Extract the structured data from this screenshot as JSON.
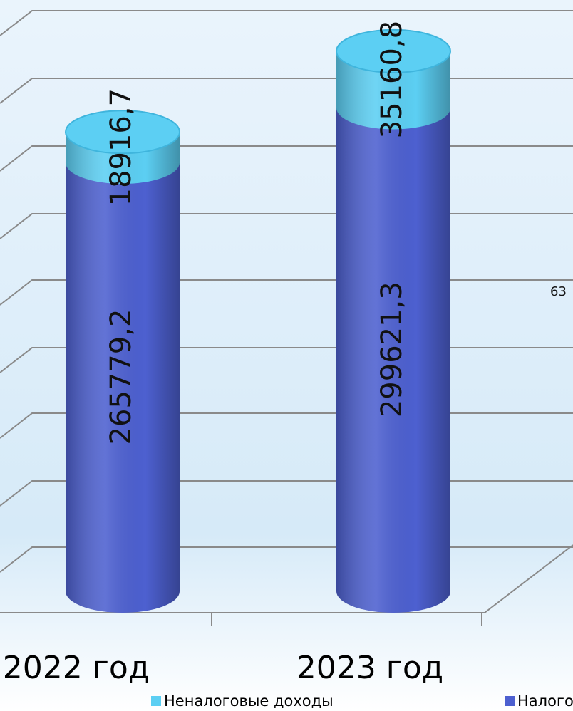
{
  "chart_data": {
    "type": "bar",
    "stacked": true,
    "categories": [
      "2022 год",
      "2023 год"
    ],
    "series": [
      {
        "name": "Налоговые доходы",
        "color": "#4d60d0",
        "values": [
          265779.2,
          299621.3
        ],
        "value_labels": [
          "265779,2",
          "299621,3"
        ]
      },
      {
        "name": "Неналоговые доходы",
        "color": "#5ccff3",
        "values": [
          18916.7,
          35160.8
        ],
        "value_labels": [
          "18916,7",
          "35160,8"
        ]
      }
    ],
    "ylim": [
      0,
      340000
    ],
    "annotations": [
      "63"
    ]
  }
}
